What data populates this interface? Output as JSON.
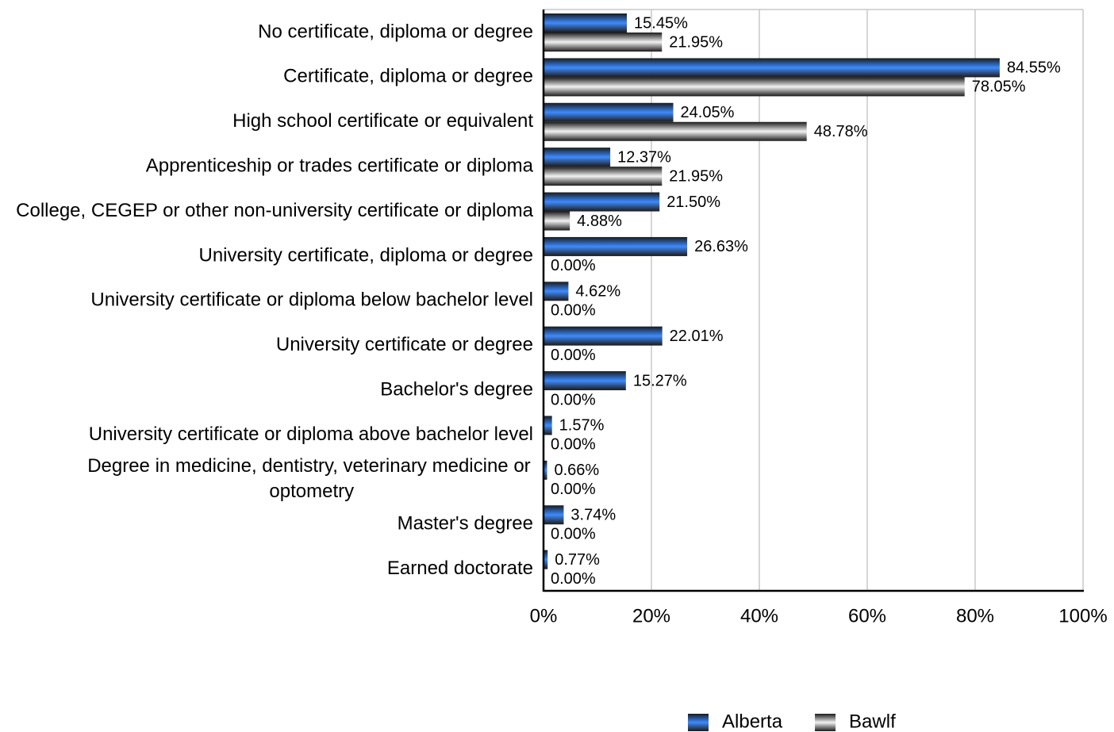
{
  "chart_data": {
    "type": "bar",
    "orientation": "horizontal",
    "categories": [
      "No certificate, diploma or degree",
      "Certificate, diploma or degree",
      "High school certificate or equivalent",
      "Apprenticeship or trades certificate or diploma",
      "College, CEGEP or other non-university certificate or diploma",
      "University certificate, diploma or degree",
      "University certificate or diploma below bachelor level",
      "University certificate or degree",
      "Bachelor's degree",
      "University certificate or diploma above bachelor level",
      "Degree in medicine, dentistry, veterinary medicine or optometry",
      "Master's degree",
      "Earned doctorate"
    ],
    "series": [
      {
        "name": "Alberta",
        "color": "#3d8bff",
        "values": [
          15.45,
          84.55,
          24.05,
          12.37,
          21.5,
          26.63,
          4.62,
          22.01,
          15.27,
          1.57,
          0.66,
          3.74,
          0.77
        ],
        "value_labels": [
          "15.45%",
          "84.55%",
          "24.05%",
          "12.37%",
          "21.50%",
          "26.63%",
          "4.62%",
          "22.01%",
          "15.27%",
          "1.57%",
          "0.66%",
          "3.74%",
          "0.77%"
        ]
      },
      {
        "name": "Bawlf",
        "color": "#f2f2f2",
        "values": [
          21.95,
          78.05,
          48.78,
          21.95,
          4.88,
          0,
          0,
          0,
          0,
          0,
          0,
          0,
          0
        ],
        "value_labels": [
          "21.95%",
          "78.05%",
          "48.78%",
          "21.95%",
          "4.88%",
          "0.00%",
          "0.00%",
          "0.00%",
          "0.00%",
          "0.00%",
          "0.00%",
          "0.00%",
          "0.00%"
        ]
      }
    ],
    "xlim": [
      0,
      100
    ],
    "xticks": [
      {
        "value": 0,
        "label": "0%"
      },
      {
        "value": 20,
        "label": "20%"
      },
      {
        "value": 40,
        "label": "40%"
      },
      {
        "value": 60,
        "label": "60%"
      },
      {
        "value": 80,
        "label": "80%"
      },
      {
        "value": 100,
        "label": "100%"
      }
    ],
    "grid": true,
    "legend": "bottom"
  }
}
